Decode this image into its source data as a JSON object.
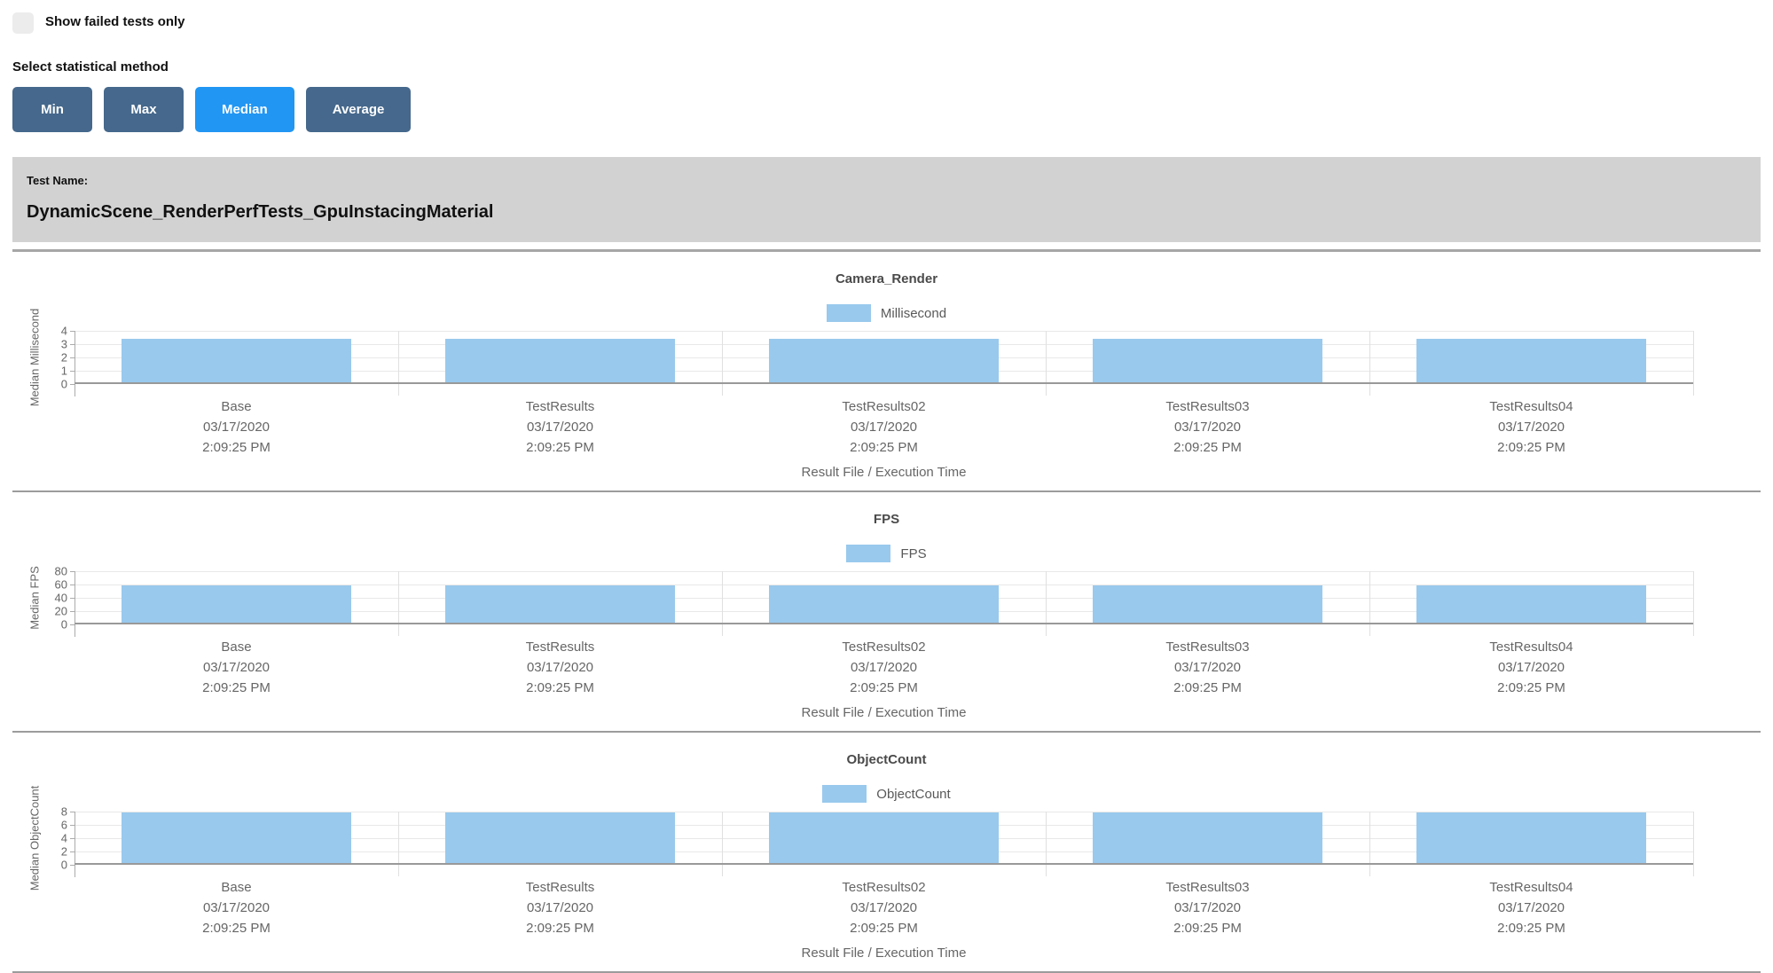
{
  "controls": {
    "show_failed_label": "Show failed tests only",
    "stat_method_label": "Select statistical method",
    "stat_buttons": [
      {
        "label": "Min",
        "active": false
      },
      {
        "label": "Max",
        "active": false
      },
      {
        "label": "Median",
        "active": true
      },
      {
        "label": "Average",
        "active": false
      }
    ]
  },
  "test_header": {
    "label": "Test Name:",
    "name": "DynamicScene_RenderPerfTests_GpuInstacingMaterial"
  },
  "colors": {
    "bar_fill": "#99C9ED",
    "button_active": "#2196F3",
    "button_inactive": "#45688C",
    "panel_bg": "#D2D2D2"
  },
  "chart_data": {
    "type": "bar",
    "x_axis_title": "Result File / Execution Time",
    "categories": [
      {
        "name": "Base",
        "date": "03/17/2020",
        "time": "2:09:25 PM"
      },
      {
        "name": "TestResults",
        "date": "03/17/2020",
        "time": "2:09:25 PM"
      },
      {
        "name": "TestResults02",
        "date": "03/17/2020",
        "time": "2:09:25 PM"
      },
      {
        "name": "TestResults03",
        "date": "03/17/2020",
        "time": "2:09:25 PM"
      },
      {
        "name": "TestResults04",
        "date": "03/17/2020",
        "time": "2:09:25 PM"
      }
    ],
    "charts": [
      {
        "title": "Camera_Render",
        "legend": "Millisecond",
        "y_label": "Median Millisecond",
        "y_ticks": [
          0,
          1,
          2,
          3,
          4
        ],
        "y_max": 4,
        "values": [
          3.4,
          3.4,
          3.4,
          3.4,
          3.4
        ]
      },
      {
        "title": "FPS",
        "legend": "FPS",
        "y_label": "Median FPS",
        "y_ticks": [
          0,
          20,
          40,
          60,
          80
        ],
        "y_max": 80,
        "values": [
          59,
          59,
          59,
          59,
          59
        ]
      },
      {
        "title": "ObjectCount",
        "legend": "ObjectCount",
        "y_label": "Median ObjectCount",
        "y_ticks": [
          0,
          2,
          4,
          6,
          8
        ],
        "y_max": 8,
        "values": [
          7.9,
          7.9,
          7.9,
          7.9,
          7.9
        ]
      }
    ]
  }
}
